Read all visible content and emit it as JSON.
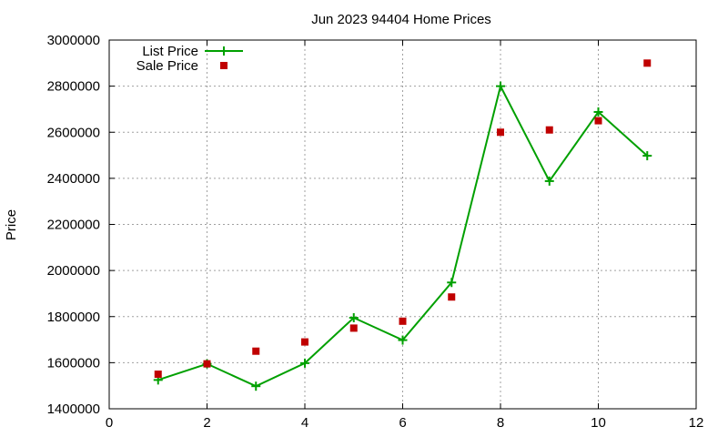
{
  "chart_data": {
    "type": "line",
    "title": "Jun 2023 94404 Home Prices",
    "xlabel": "",
    "ylabel": "Price",
    "xlim": [
      0,
      12
    ],
    "ylim": [
      1400000,
      3000000
    ],
    "xticks": [
      0,
      2,
      4,
      6,
      8,
      10,
      12
    ],
    "yticks": [
      1400000,
      1600000,
      1800000,
      2000000,
      2200000,
      2400000,
      2600000,
      2800000,
      3000000
    ],
    "grid": true,
    "legend_position": "top-left",
    "series": [
      {
        "name": "List Price",
        "style": "line+points",
        "color": "#00a000",
        "x": [
          1,
          2,
          3,
          4,
          5,
          6,
          7,
          8,
          9,
          10,
          11
        ],
        "y": [
          1525000,
          1595000,
          1498000,
          1598000,
          1795000,
          1698000,
          1948000,
          2800000,
          2388000,
          2688000,
          2498000
        ]
      },
      {
        "name": "Sale Price",
        "style": "points",
        "color": "#c00000",
        "x": [
          1,
          2,
          3,
          4,
          5,
          6,
          7,
          8,
          9,
          10,
          11
        ],
        "y": [
          1550000,
          1595000,
          1650000,
          1690000,
          1750000,
          1780000,
          1885000,
          2600000,
          2610000,
          2650000,
          2900000
        ]
      }
    ]
  }
}
